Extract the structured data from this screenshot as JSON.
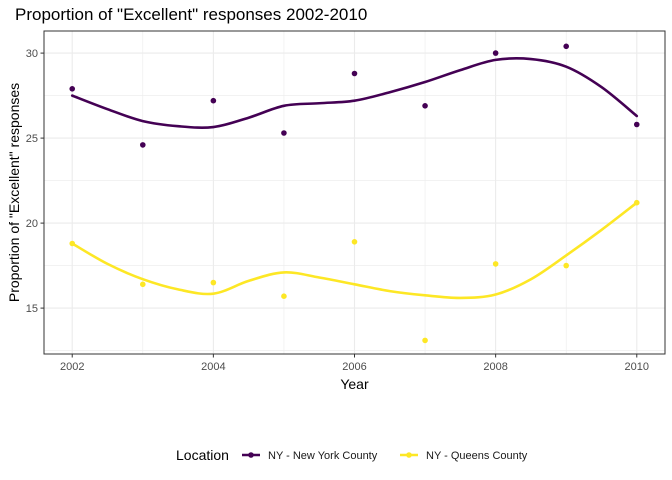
{
  "chart_data": {
    "type": "scatter",
    "title": "Proportion of \"Excellent\" responses 2002-2010",
    "xlabel": "Year",
    "ylabel": "Proportion of \"Excellent\" responses",
    "xlim": [
      2001.6,
      2010.4
    ],
    "ylim": [
      12.3,
      31.3
    ],
    "x_ticks": [
      2002,
      2004,
      2006,
      2008,
      2010
    ],
    "y_ticks": [
      15,
      20,
      25,
      30
    ],
    "grid": true,
    "legend": {
      "title": "Location",
      "placement": "bottom"
    },
    "series": [
      {
        "name": "NY - New York County",
        "color": "#440154",
        "points": [
          {
            "x": 2002,
            "y": 27.9
          },
          {
            "x": 2003,
            "y": 24.6
          },
          {
            "x": 2004,
            "y": 27.2
          },
          {
            "x": 2005,
            "y": 25.3
          },
          {
            "x": 2006,
            "y": 28.8
          },
          {
            "x": 2007,
            "y": 26.9
          },
          {
            "x": 2008,
            "y": 30.0
          },
          {
            "x": 2009,
            "y": 30.4
          },
          {
            "x": 2010,
            "y": 25.8
          }
        ],
        "smooth": [
          {
            "x": 2002,
            "y": 27.5
          },
          {
            "x": 2002.5,
            "y": 26.7
          },
          {
            "x": 2003,
            "y": 26.0
          },
          {
            "x": 2003.5,
            "y": 25.7
          },
          {
            "x": 2004,
            "y": 25.65
          },
          {
            "x": 2004.5,
            "y": 26.2
          },
          {
            "x": 2005,
            "y": 26.9
          },
          {
            "x": 2005.5,
            "y": 27.05
          },
          {
            "x": 2006,
            "y": 27.2
          },
          {
            "x": 2006.5,
            "y": 27.7
          },
          {
            "x": 2007,
            "y": 28.3
          },
          {
            "x": 2007.5,
            "y": 29.0
          },
          {
            "x": 2008,
            "y": 29.6
          },
          {
            "x": 2008.5,
            "y": 29.65
          },
          {
            "x": 2009,
            "y": 29.2
          },
          {
            "x": 2009.5,
            "y": 28.0
          },
          {
            "x": 2010,
            "y": 26.3
          }
        ]
      },
      {
        "name": "NY - Queens County",
        "color": "#fde725",
        "points": [
          {
            "x": 2002,
            "y": 18.8
          },
          {
            "x": 2003,
            "y": 16.4
          },
          {
            "x": 2004,
            "y": 16.5
          },
          {
            "x": 2005,
            "y": 15.7
          },
          {
            "x": 2006,
            "y": 18.9
          },
          {
            "x": 2007,
            "y": 13.1
          },
          {
            "x": 2008,
            "y": 17.6
          },
          {
            "x": 2009,
            "y": 17.5
          },
          {
            "x": 2010,
            "y": 21.2
          }
        ],
        "smooth": [
          {
            "x": 2002,
            "y": 18.8
          },
          {
            "x": 2002.5,
            "y": 17.6
          },
          {
            "x": 2003,
            "y": 16.7
          },
          {
            "x": 2003.5,
            "y": 16.1
          },
          {
            "x": 2004,
            "y": 15.85
          },
          {
            "x": 2004.5,
            "y": 16.6
          },
          {
            "x": 2005,
            "y": 17.1
          },
          {
            "x": 2005.5,
            "y": 16.8
          },
          {
            "x": 2006,
            "y": 16.4
          },
          {
            "x": 2006.5,
            "y": 16.0
          },
          {
            "x": 2007,
            "y": 15.75
          },
          {
            "x": 2007.5,
            "y": 15.6
          },
          {
            "x": 2008,
            "y": 15.8
          },
          {
            "x": 2008.5,
            "y": 16.7
          },
          {
            "x": 2009,
            "y": 18.1
          },
          {
            "x": 2009.5,
            "y": 19.6
          },
          {
            "x": 2010,
            "y": 21.2
          }
        ]
      }
    ]
  }
}
